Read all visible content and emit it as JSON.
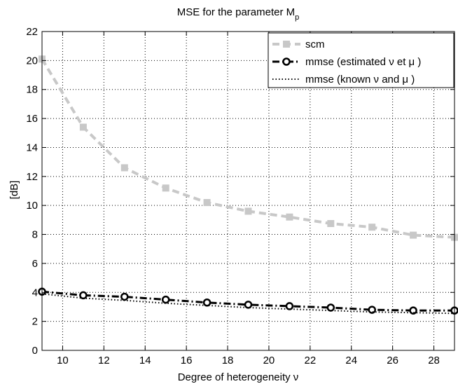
{
  "chart_data": {
    "type": "line",
    "title": "MSE for the parameter M",
    "title_subscript": "p",
    "xlabel": "Degree of heterogeneity ν",
    "ylabel": "[dB]",
    "xlim": [
      9,
      29
    ],
    "ylim": [
      0,
      22
    ],
    "xticks": [
      10,
      12,
      14,
      16,
      18,
      20,
      22,
      24,
      26,
      28
    ],
    "yticks": [
      0,
      2,
      4,
      6,
      8,
      10,
      12,
      14,
      16,
      18,
      20,
      22
    ],
    "grid": true,
    "legend_position": "top-right",
    "x": [
      9,
      11,
      13,
      15,
      17,
      19,
      21,
      23,
      25,
      27,
      29
    ],
    "series": [
      {
        "name": "scm",
        "style": "dashed",
        "marker": "square",
        "color": "#c8c8c8",
        "values": [
          20.1,
          15.4,
          12.6,
          11.2,
          10.2,
          9.6,
          9.2,
          8.75,
          8.5,
          7.95,
          7.8
        ]
      },
      {
        "name": "mmse (estimated ν et μ )",
        "style": "dashdot",
        "marker": "circle",
        "color": "#000000",
        "values": [
          4.05,
          3.8,
          3.7,
          3.5,
          3.3,
          3.15,
          3.05,
          2.95,
          2.8,
          2.75,
          2.75
        ]
      },
      {
        "name": "mmse (known ν and μ )",
        "style": "dotted",
        "marker": "none",
        "color": "#000000",
        "values": [
          3.9,
          3.6,
          3.45,
          3.25,
          3.1,
          2.95,
          2.85,
          2.75,
          2.65,
          2.6,
          2.55
        ]
      }
    ]
  }
}
